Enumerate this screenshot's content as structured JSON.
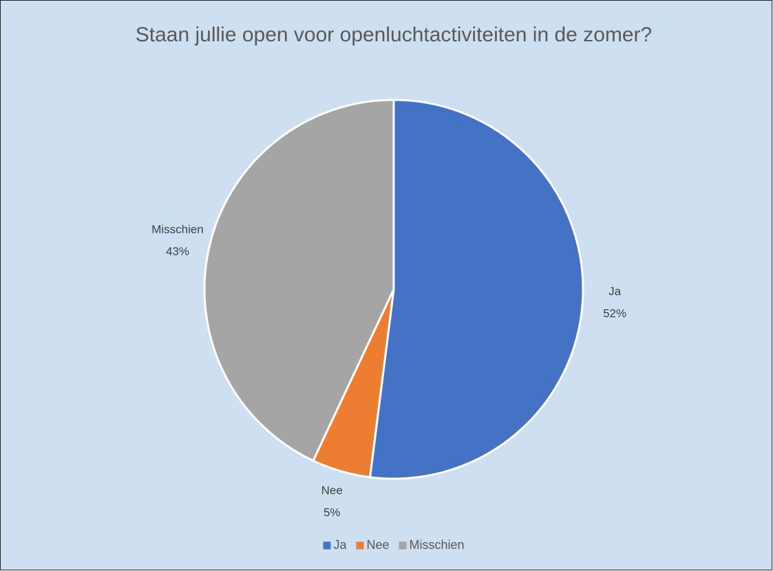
{
  "chart_data": {
    "type": "pie",
    "title": "Staan jullie open voor openluchtactiviteiten in de zomer?",
    "categories": [
      "Ja",
      "Nee",
      "Misschien"
    ],
    "values": [
      52,
      5,
      43
    ],
    "value_labels": [
      "52%",
      "5%",
      "43%"
    ],
    "colors": [
      "#4472c4",
      "#ed7d31",
      "#a5a5a5"
    ],
    "legend": "bottom"
  }
}
